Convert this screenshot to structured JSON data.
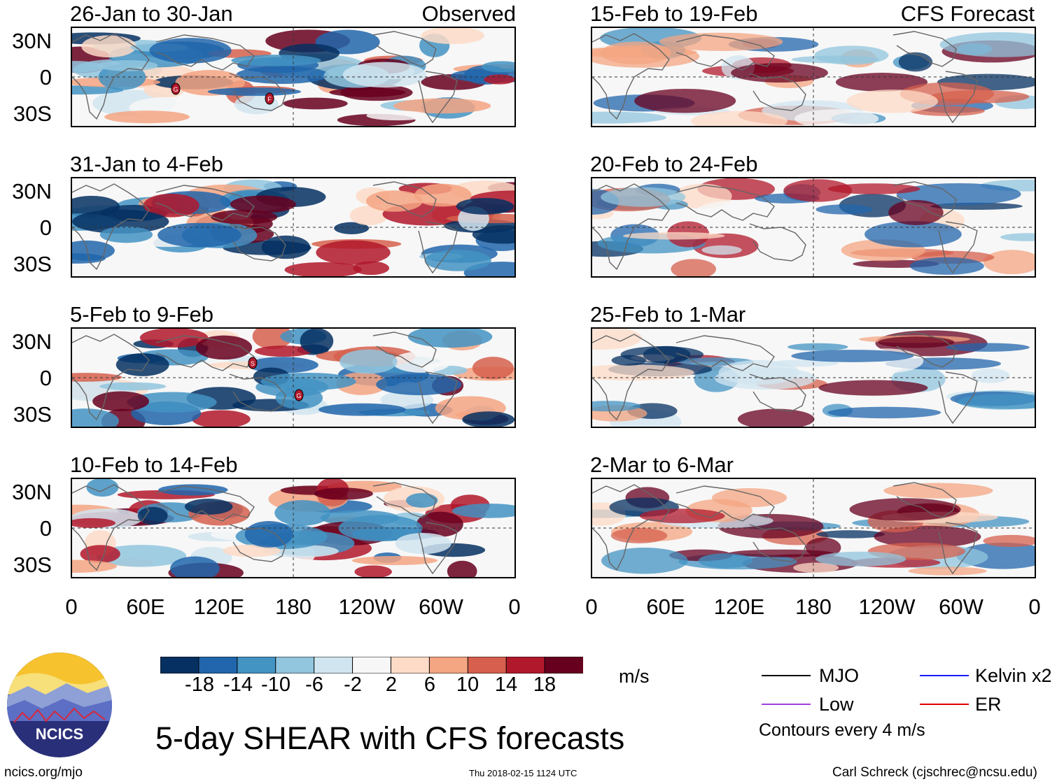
{
  "panel_titles": {
    "obs_1": "26-Jan to 30-Jan",
    "obs_2": "31-Jan to 4-Feb",
    "obs_3": "5-Feb to 9-Feb",
    "obs_4": "10-Feb to 14-Feb",
    "fc_1": "15-Feb to 19-Feb",
    "fc_2": "20-Feb to 24-Feb",
    "fc_3": "25-Feb to 1-Mar",
    "fc_4": "2-Mar to 6-Mar"
  },
  "column_labels": {
    "observed": "Observed",
    "forecast": "CFS Forecast"
  },
  "lat_labels": [
    "30N",
    "0",
    "30S"
  ],
  "lon_labels": [
    "0",
    "60E",
    "120E",
    "180",
    "120W",
    "60W",
    "0"
  ],
  "colorbar": {
    "ticks": [
      "-18",
      "-14",
      "-10",
      "-6",
      "-2",
      "2",
      "6",
      "10",
      "14",
      "18"
    ],
    "colors": [
      "#053061",
      "#2166ac",
      "#4393c3",
      "#92c5de",
      "#d1e5f0",
      "#f7f7f7",
      "#fddbc7",
      "#f4a582",
      "#d6604d",
      "#b2182b",
      "#67001f"
    ],
    "units": "m/s"
  },
  "legend": {
    "mjo": "MJO",
    "kelvin": "Kelvin x2",
    "low": "Low",
    "er": "ER",
    "contours": "Contours every 4 m/s",
    "colors": {
      "mjo": "#000000",
      "kelvin": "#1a1aff",
      "low": "#a040e0",
      "er": "#e00000"
    }
  },
  "main_title": "5-day SHEAR with CFS forecasts",
  "logo_text": "NCICS",
  "footer": {
    "url": "ncics.org/mjo",
    "timestamp": "Thu 2018-02-15 1124 UTC",
    "author": "Carl Schreck (cjschrec@ncsu.edu)"
  },
  "storm_markers": [
    {
      "panel": "obs_1",
      "symbol": "G"
    },
    {
      "panel": "obs_1",
      "symbol": "F"
    },
    {
      "panel": "obs_3",
      "symbol": "S"
    },
    {
      "panel": "obs_3",
      "symbol": "G"
    }
  ]
}
